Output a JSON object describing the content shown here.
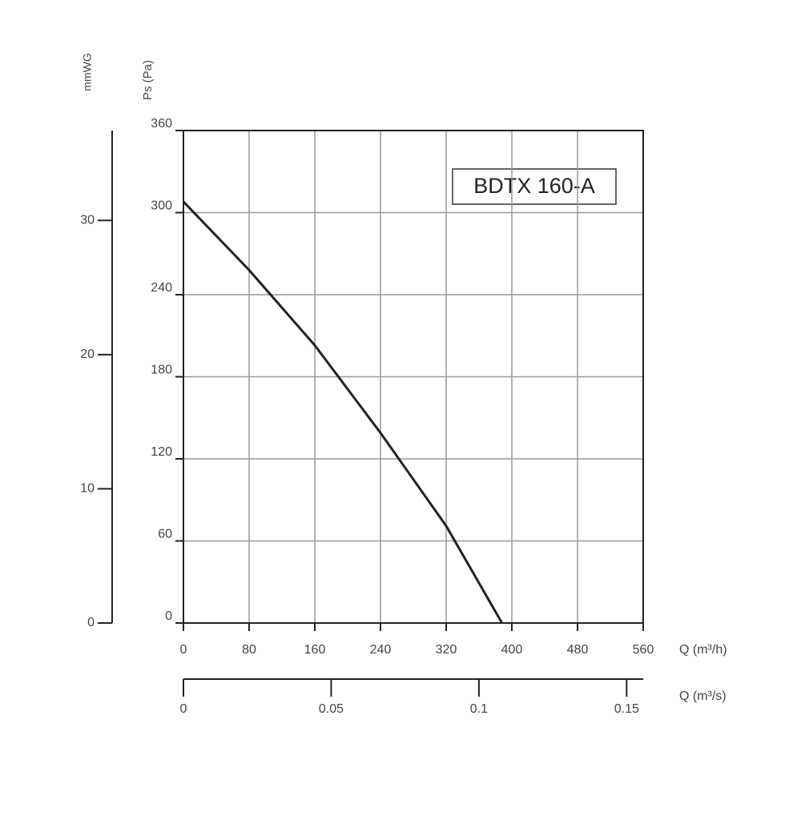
{
  "chart_data": {
    "type": "line",
    "annotation": "BDTX 160-A",
    "x_label": "Q (m³/h)",
    "y_label": "Ps (Pa)",
    "x2_label": "Q (m³/s)",
    "y2_label": "mmWG",
    "x": [
      0,
      80,
      160,
      240,
      320,
      388
    ],
    "series": [
      {
        "color": "#222222",
        "values": [
          308,
          258,
          203,
          139,
          71,
          0
        ]
      }
    ],
    "xlim": [
      0,
      560
    ],
    "xticks": [
      0,
      80,
      160,
      240,
      320,
      400,
      480,
      560
    ],
    "ylim": [
      0,
      360
    ],
    "yticks": [
      0,
      60,
      120,
      180,
      240,
      300,
      360
    ],
    "y2lim": [
      0,
      36.7
    ],
    "y2ticks": [
      0,
      10,
      20,
      30
    ],
    "x2lim": [
      0,
      0.1556
    ],
    "x2ticks": [
      0,
      0.05,
      0.1,
      0.15
    ],
    "grid": true
  }
}
